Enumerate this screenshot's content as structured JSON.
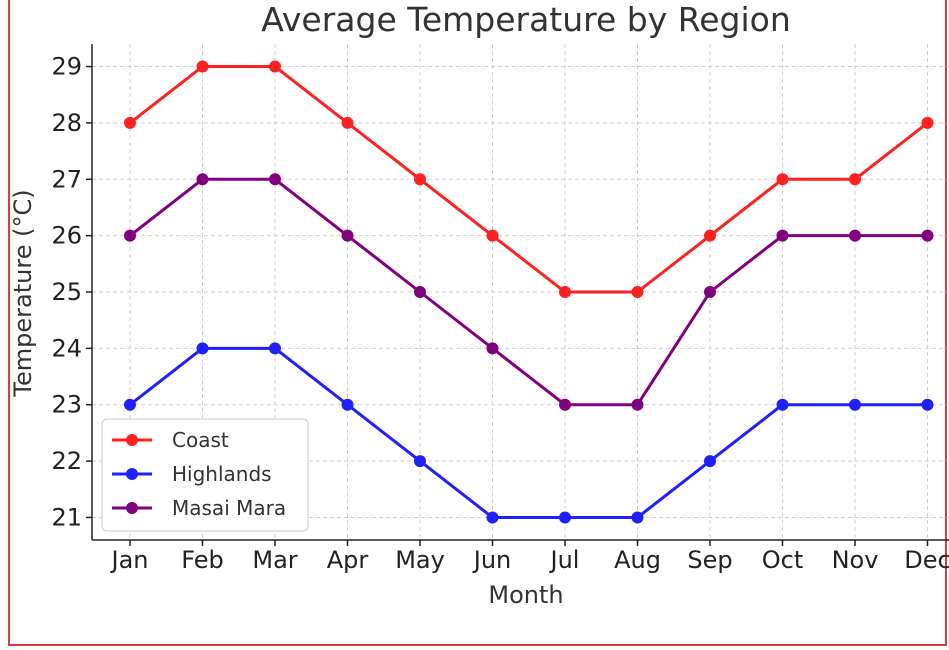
{
  "chart_data": {
    "type": "line",
    "title": "Average Temperature by Region",
    "xlabel": "Month",
    "ylabel": "Temperature (°C)",
    "categories": [
      "Jan",
      "Feb",
      "Mar",
      "Apr",
      "May",
      "Jun",
      "Jul",
      "Aug",
      "Sep",
      "Oct",
      "Nov",
      "Dec"
    ],
    "yticks": [
      21,
      22,
      23,
      24,
      25,
      26,
      27,
      28,
      29
    ],
    "ylim": [
      20.6,
      29.4
    ],
    "grid": true,
    "legend_position": "lower-left",
    "series": [
      {
        "name": "Coast",
        "color": "#ff2020",
        "values": [
          28,
          29,
          29,
          28,
          27,
          26,
          25,
          25,
          26,
          27,
          27,
          28
        ]
      },
      {
        "name": "Highlands",
        "color": "#2020ff",
        "values": [
          23,
          24,
          24,
          23,
          22,
          21,
          21,
          21,
          22,
          23,
          23,
          23
        ]
      },
      {
        "name": "Masai Mara",
        "color": "#800080",
        "values": [
          26,
          27,
          27,
          26,
          25,
          24,
          23,
          23,
          25,
          26,
          26,
          26
        ]
      }
    ]
  }
}
